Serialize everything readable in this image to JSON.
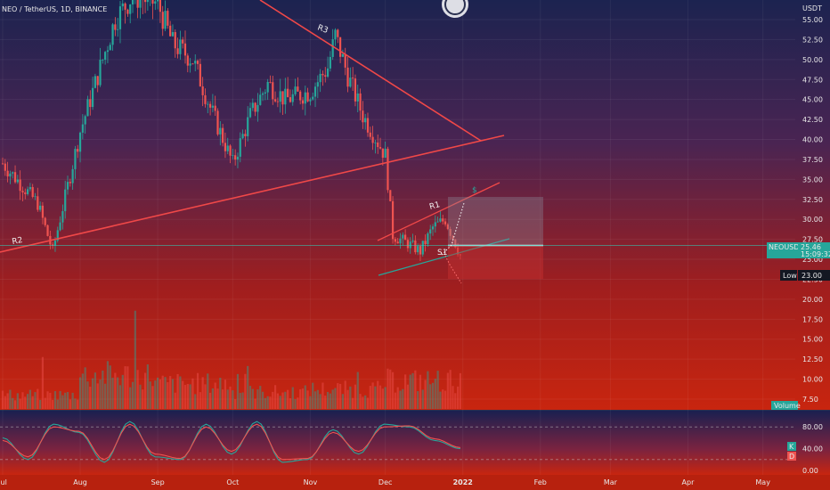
{
  "symbol": {
    "title": "NEO / TetherUS, 1D, BINANCE"
  },
  "price_axis": {
    "currency": "USDT",
    "ticks": [
      "55.00",
      "52.50",
      "50.00",
      "47.50",
      "45.00",
      "42.50",
      "40.00",
      "37.50",
      "35.00",
      "32.50",
      "30.00",
      "27.50",
      "25.00",
      "22.50",
      "20.00",
      "17.50",
      "15.00",
      "12.50",
      "10.00",
      "7.50"
    ],
    "last_price_label": "NEOUSDT",
    "last_price_value": "25.46",
    "last_price_countdown": "15:09:32",
    "low_label": "Low",
    "low_value": "23.00",
    "volume_label": "Volume"
  },
  "oscillator": {
    "ticks": [
      "80.00",
      "40.00",
      "0.00"
    ],
    "k_label": "K",
    "d_label": "D",
    "colors": {
      "k": "#26a69a",
      "d": "#ef5350"
    }
  },
  "time_axis": {
    "ticks": [
      "Jul",
      "Aug",
      "Sep",
      "Oct",
      "Nov",
      "Dec",
      "2022",
      "Feb",
      "Mar",
      "Apr",
      "May"
    ]
  },
  "annotations": {
    "r1": "R1",
    "r2": "R2",
    "r3": "R3",
    "s1": "S1",
    "dollar": "$"
  },
  "colors": {
    "bull": "#26a69a",
    "bear": "#ef5350",
    "trendline": "#f04848",
    "support": "#26a69a",
    "price_line": "#2dd4bf"
  },
  "chart_data": [
    {
      "type": "candlestick",
      "title": "NEO / TetherUS, 1D, BINANCE",
      "xlabel": "",
      "ylabel": "USDT",
      "x_range": [
        "2021-07-01",
        "2022-05-15"
      ],
      "ylim": [
        6.0,
        57.0
      ],
      "grid": true,
      "x": [
        "2021-07-01",
        "2021-07-15",
        "2021-07-21",
        "2021-08-01",
        "2021-08-08",
        "2021-08-15",
        "2021-08-22",
        "2021-09-01",
        "2021-09-07",
        "2021-09-15",
        "2021-09-22",
        "2021-10-01",
        "2021-10-08",
        "2021-10-15",
        "2021-10-22",
        "2021-11-01",
        "2021-11-08",
        "2021-11-11",
        "2021-11-16",
        "2021-11-22",
        "2021-12-01",
        "2021-12-04",
        "2021-12-10",
        "2021-12-15",
        "2021-12-20",
        "2021-12-25",
        "2021-12-31"
      ],
      "series": [
        {
          "values": [
            37,
            32,
            26,
            41,
            48,
            55,
            58,
            57,
            52,
            50,
            44,
            37,
            43,
            47,
            45,
            46,
            49,
            53,
            48,
            43,
            38,
            28,
            27,
            26,
            29,
            30,
            25.5
          ]
        }
      ]
    },
    {
      "type": "bar",
      "ylabel": "Volume",
      "categories": [
        "Jul",
        "Aug",
        "Sep",
        "Oct",
        "Nov",
        "Dec"
      ],
      "values": [
        2.5,
        6,
        4.5,
        3,
        3.5,
        5
      ]
    },
    {
      "type": "line",
      "ylim": [
        0,
        100
      ],
      "series": [
        {
          "name": "K",
          "values": [
            60,
            20,
            85,
            70,
            15,
            90,
            25,
            20,
            85,
            30,
            90,
            15,
            20,
            75,
            30,
            85,
            80,
            55,
            40
          ]
        },
        {
          "name": "D",
          "values": [
            55,
            25,
            80,
            72,
            20,
            85,
            30,
            22,
            80,
            35,
            85,
            20,
            22,
            70,
            35,
            80,
            82,
            58,
            42
          ]
        }
      ]
    }
  ]
}
